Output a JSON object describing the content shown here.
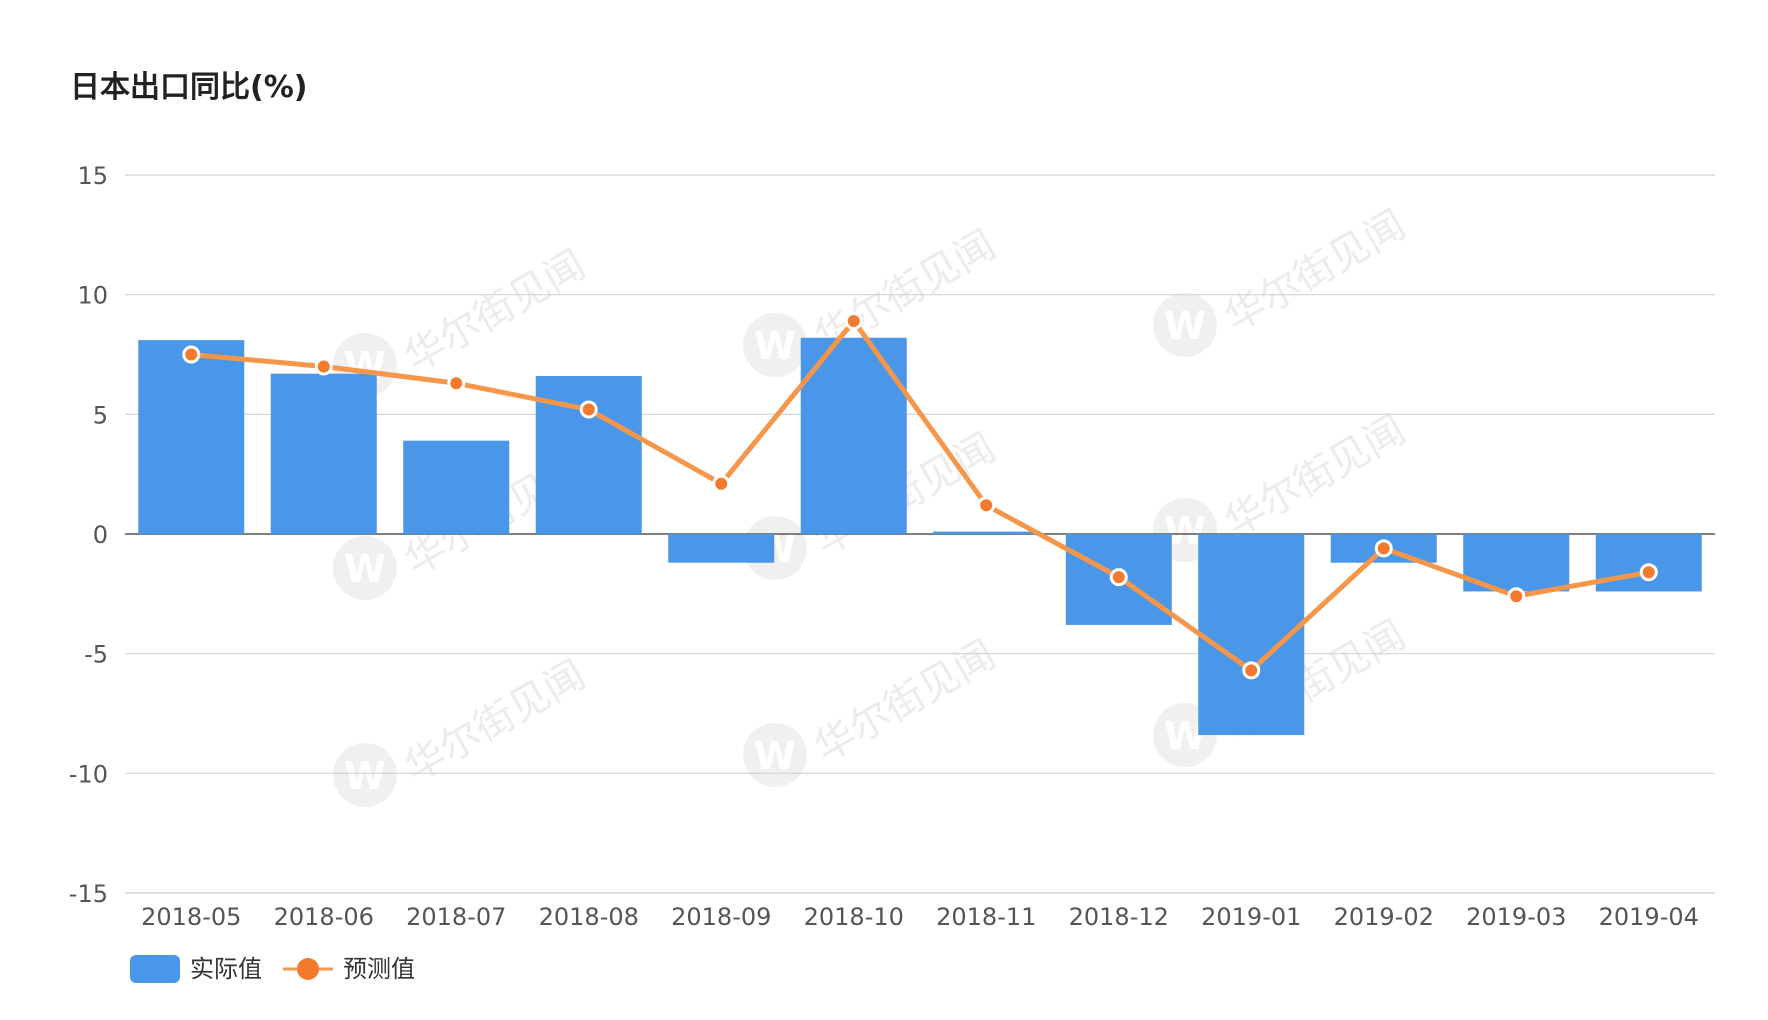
{
  "chart_data": {
    "type": "bar",
    "title": "日本出口同比(%)",
    "categories": [
      "2018-05",
      "2018-06",
      "2018-07",
      "2018-08",
      "2018-09",
      "2018-10",
      "2018-11",
      "2018-12",
      "2019-01",
      "2019-02",
      "2019-03",
      "2019-04"
    ],
    "series": [
      {
        "name": "实际值",
        "type": "bar",
        "color": "#4a96e8",
        "values": [
          8.1,
          6.7,
          3.9,
          6.6,
          -1.2,
          8.2,
          0.1,
          -3.8,
          -8.4,
          -1.2,
          -2.4,
          -2.4
        ]
      },
      {
        "name": "预测值",
        "type": "line",
        "color": "#f5964a",
        "values": [
          7.5,
          7.0,
          6.3,
          5.2,
          2.1,
          8.9,
          1.2,
          -1.8,
          -5.7,
          -0.6,
          -2.6,
          -1.6
        ]
      }
    ],
    "yticks": [
      "15",
      "10",
      "5",
      "0",
      "-5",
      "-10",
      "-15"
    ],
    "ylim": [
      -15,
      15
    ],
    "grid": true,
    "legend_position": "bottom-left"
  },
  "watermark": {
    "text": "华尔街见闻",
    "logo_letter": "W"
  }
}
